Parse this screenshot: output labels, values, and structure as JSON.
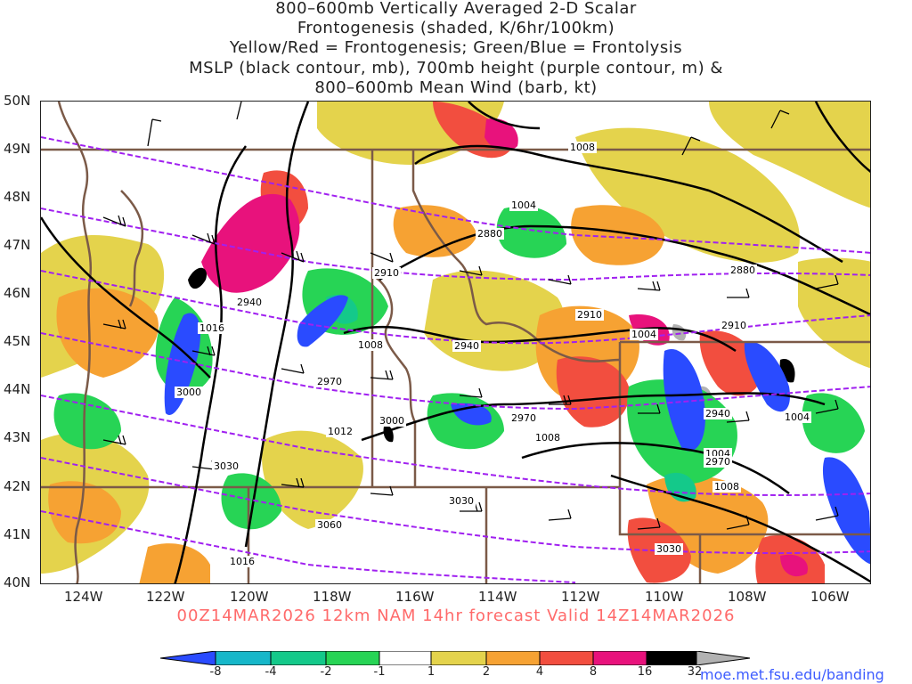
{
  "titles": [
    "800–600mb Vertically Averaged 2-D Scalar",
    "Frontogenesis (shaded, K/6hr/100km)",
    "Yellow/Red = Frontogenesis;  Green/Blue = Frontolysis",
    "MSLP (black contour, mb), 700mb height (purple contour, m) &",
    "800–600mb Mean Wind (barb, kt)"
  ],
  "lat_labels": [
    "50N",
    "49N",
    "48N",
    "47N",
    "46N",
    "45N",
    "44N",
    "43N",
    "42N",
    "41N",
    "40N"
  ],
  "lon_labels": [
    "124W",
    "122W",
    "120W",
    "118W",
    "116W",
    "114W",
    "112W",
    "110W",
    "108W",
    "106W"
  ],
  "valid_text": "00Z14MAR2026 12km NAM 14hr forecast Valid 14Z14MAR2026",
  "colorbar": {
    "labels": [
      "-8",
      "-4",
      "-2",
      "-1",
      "1",
      "2",
      "4",
      "8",
      "16",
      "32"
    ],
    "colors": [
      "#2a4bff",
      "#16b7c9",
      "#14c98a",
      "#27d455",
      "#ffffff",
      "#e4d34c",
      "#f6a233",
      "#f24e3f",
      "#e8127c",
      "#000000",
      "#b2b2b2"
    ]
  },
  "mslp_labels": [
    "1008",
    "1004",
    "1004",
    "1008",
    "1012",
    "1016",
    "1016",
    "1004",
    "1004",
    "1008",
    "1008",
    "1004"
  ],
  "height_labels": [
    "2880",
    "2880",
    "2910",
    "2910",
    "2910",
    "2940",
    "2940",
    "2940",
    "2970",
    "2970",
    "2970",
    "3000",
    "3000",
    "3030",
    "3030",
    "3030",
    "3060"
  ],
  "credit": "moe.met.fsu.edu/banding"
}
